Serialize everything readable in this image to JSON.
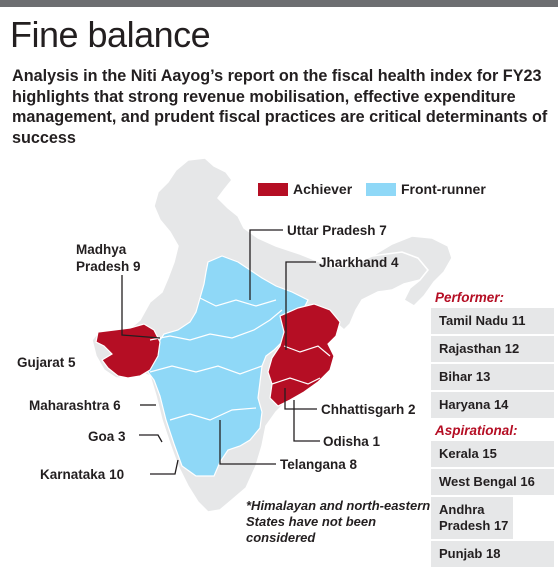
{
  "title": "Fine balance",
  "subtitle": "Analysis in the Niti Aayog’s report on the fiscal health index for FY23 highlights that strong revenue mobilisation, effective expenditure management, and prudent fiscal practices are critical determinants of success",
  "legend": [
    {
      "label": "Achiever",
      "color": "#b50e24"
    },
    {
      "label": "Front-runner",
      "color": "#8fd8f7"
    }
  ],
  "colors": {
    "base": "#e6e7e8",
    "achiever": "#b50e24",
    "front_runner": "#8fd8f7",
    "heading": "#b50e24"
  },
  "map_labels": {
    "madhya_pradesh": {
      "name_line1": "Madhya",
      "name_line2": "Pradesh",
      "rank": "9"
    },
    "gujarat": {
      "name": "Gujarat",
      "rank": "5"
    },
    "maharashtra": {
      "name": "Maharashtra",
      "rank": "6"
    },
    "goa": {
      "name": "Goa",
      "rank": "3"
    },
    "karnataka": {
      "name": "Karnataka",
      "rank": "10"
    },
    "uttar_pradesh": {
      "name": "Uttar Pradesh",
      "rank": "7"
    },
    "jharkhand": {
      "name": "Jharkhand",
      "rank": "4"
    },
    "chhattisgarh": {
      "name": "Chhattisgarh",
      "rank": "2"
    },
    "odisha": {
      "name": "Odisha",
      "rank": "1"
    },
    "telangana": {
      "name": "Telangana",
      "rank": "8"
    }
  },
  "note": "*Himalayan and north-eastern States have not been considered",
  "performer": {
    "heading": "Performer:",
    "items": [
      {
        "name": "Tamil Nadu",
        "rank": "11"
      },
      {
        "name": "Rajasthan",
        "rank": "12"
      },
      {
        "name": "Bihar",
        "rank": "13"
      },
      {
        "name": "Haryana",
        "rank": "14"
      }
    ]
  },
  "aspirational": {
    "heading": "Aspirational:",
    "items": [
      {
        "name": "Kerala",
        "rank": "15"
      },
      {
        "name": "West Bengal",
        "rank": "16"
      },
      {
        "name": "Andhra Pradesh",
        "rank": "17"
      },
      {
        "name": "Punjab",
        "rank": "18"
      }
    ]
  }
}
